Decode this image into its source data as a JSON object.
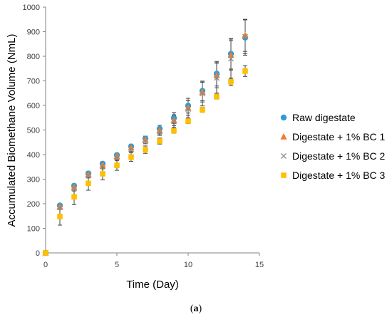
{
  "caption": {
    "open": "(",
    "letter": "a",
    "close": ")"
  },
  "chart_data": {
    "type": "scatter",
    "title": "",
    "xlabel": "Time (Day)",
    "ylabel": "Accumulated Biomethane Volume (NmL)",
    "xlim": [
      0,
      15
    ],
    "ylim": [
      0,
      1000
    ],
    "xticks": [
      0,
      5,
      10,
      15
    ],
    "yticks": [
      0,
      100,
      200,
      300,
      400,
      500,
      600,
      700,
      800,
      900,
      1000
    ],
    "grid": false,
    "legend_position": "right",
    "x": [
      0,
      1,
      2,
      3,
      4,
      5,
      6,
      7,
      8,
      9,
      10,
      11,
      12,
      13,
      14
    ],
    "series": [
      {
        "name": "Raw digestate",
        "marker": "circle",
        "color": "#2e9bd6",
        "values": [
          0,
          193,
          273,
          323,
          363,
          398,
          433,
          465,
          505,
          549,
          599,
          659,
          729,
          810,
          876
        ],
        "error": [
          0,
          5,
          8,
          8,
          8,
          8,
          8,
          10,
          14,
          22,
          30,
          40,
          50,
          62,
          72
        ]
      },
      {
        "name": "Digestate + 1% BC 1",
        "marker": "triangle",
        "color": "#ed7d31",
        "values": [
          0,
          188,
          268,
          319,
          358,
          393,
          428,
          460,
          498,
          540,
          590,
          654,
          722,
          804,
          885
        ],
        "error": [
          0,
          5,
          8,
          8,
          8,
          8,
          8,
          10,
          14,
          22,
          30,
          40,
          50,
          60,
          65
        ]
      },
      {
        "name": "Digestate + 1% BC 2",
        "marker": "x",
        "color": "#8c8c8c",
        "values": [
          0,
          185,
          262,
          315,
          352,
          388,
          422,
          456,
          493,
          535,
          585,
          648,
          712,
          790,
          880
        ],
        "error": [
          0,
          8,
          10,
          10,
          10,
          10,
          10,
          12,
          15,
          25,
          35,
          50,
          62,
          80,
          70
        ]
      },
      {
        "name": "Digestate + 1% BC 3",
        "marker": "square",
        "color": "#ffc000",
        "values": [
          0,
          148,
          228,
          283,
          322,
          356,
          390,
          420,
          455,
          497,
          536,
          582,
          636,
          696,
          740
        ],
        "error": [
          0,
          35,
          32,
          28,
          25,
          20,
          18,
          15,
          12,
          10,
          10,
          10,
          10,
          15,
          22
        ]
      }
    ]
  }
}
